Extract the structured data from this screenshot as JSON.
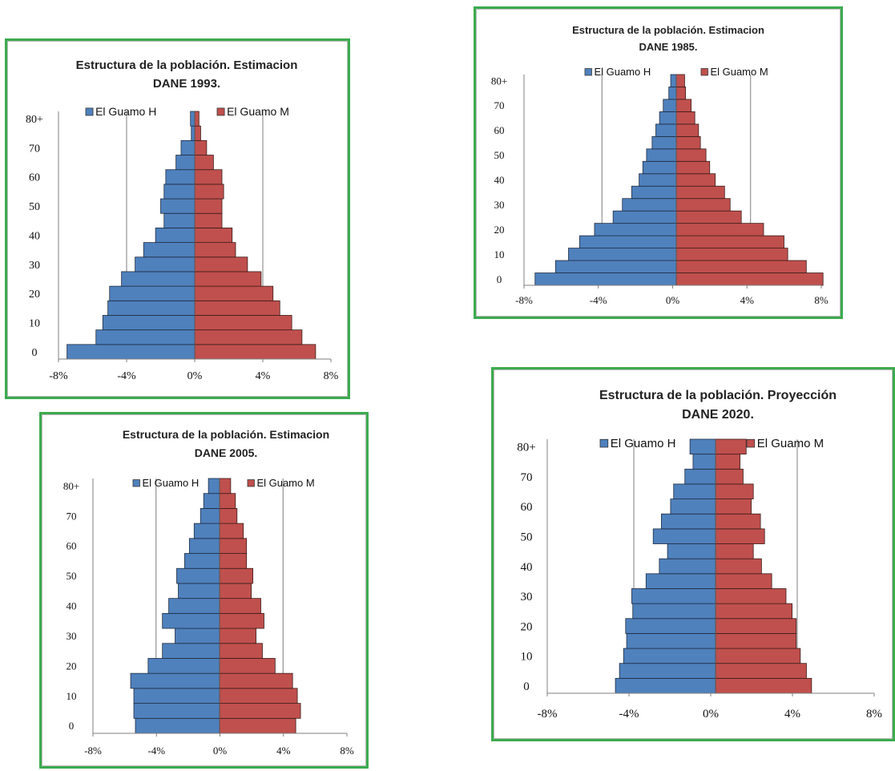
{
  "colors": {
    "male": "#4f81bd",
    "female": "#c0504d",
    "male_edge": "#1f2c3f",
    "female_edge": "#3a1c1b",
    "frame": "#3cab4f",
    "grid": "#7f7f7f"
  },
  "chart_data": [
    {
      "id": "c1993",
      "type": "bar",
      "orientation": "horizontal-population-pyramid",
      "title_lines": [
        "Estructura de la población. Estimacion",
        "DANE 1993."
      ],
      "legend": [
        "El Guamo H",
        "El Guamo M"
      ],
      "xticks": [
        "-8%",
        "-4%",
        "0%",
        "4%",
        "8%"
      ],
      "yticks": [
        "0",
        "10",
        "20",
        "30",
        "40",
        "50",
        "60",
        "70",
        "80+"
      ],
      "xlim": [
        -8,
        8
      ],
      "grid": "vertical at -4 and 4",
      "age_groups": 17,
      "series": [
        {
          "name": "El Guamo H",
          "values": [
            -7.5,
            -5.8,
            -5.4,
            -5.1,
            -5.0,
            -4.3,
            -3.5,
            -3.0,
            -2.3,
            -1.8,
            -2.0,
            -1.8,
            -1.7,
            -1.1,
            -0.8,
            -0.2,
            -0.25
          ]
        },
        {
          "name": "El Guamo M",
          "values": [
            7.1,
            6.3,
            5.7,
            5.0,
            4.6,
            3.9,
            3.1,
            2.4,
            2.2,
            1.6,
            1.6,
            1.7,
            1.6,
            1.1,
            0.7,
            0.35,
            0.25
          ]
        }
      ]
    },
    {
      "id": "c1985",
      "type": "bar",
      "orientation": "horizontal-population-pyramid",
      "title_lines": [
        "Estructura de la población. Estimacion",
        "DANE 1985."
      ],
      "legend": [
        "El Guamo H",
        "El Guamo M"
      ],
      "xticks": [
        "-8%",
        "-4%",
        "0%",
        "4%",
        "8%"
      ],
      "yticks": [
        "0",
        "10",
        "20",
        "30",
        "40",
        "50",
        "60",
        "70",
        "80+"
      ],
      "xlim": [
        -8,
        8
      ],
      "grid": "vertical at -4 and 4",
      "age_groups": 17,
      "series": [
        {
          "name": "El Guamo H",
          "values": [
            -7.6,
            -6.5,
            -5.8,
            -5.2,
            -4.4,
            -3.4,
            -2.9,
            -2.4,
            -2.0,
            -1.8,
            -1.6,
            -1.3,
            -1.1,
            -0.9,
            -0.7,
            -0.4,
            -0.3
          ]
        },
        {
          "name": "El Guamo M",
          "values": [
            7.9,
            7.0,
            6.0,
            5.8,
            4.7,
            3.5,
            2.9,
            2.6,
            2.1,
            1.8,
            1.6,
            1.3,
            1.2,
            1.0,
            0.8,
            0.5,
            0.45
          ]
        }
      ]
    },
    {
      "id": "c2005",
      "type": "bar",
      "orientation": "horizontal-population-pyramid",
      "title_lines": [
        "Estructura de la población. Estimacion",
        "DANE 2005."
      ],
      "legend": [
        "El Guamo H",
        "El Guamo M"
      ],
      "xticks": [
        "-8%",
        "-4%",
        "0%",
        "4%",
        "8%"
      ],
      "yticks": [
        "0",
        "10",
        "20",
        "30",
        "40",
        "50",
        "60",
        "70",
        "80+"
      ],
      "xlim": [
        -8,
        8
      ],
      "grid": "vertical at -4 and 4",
      "age_groups": 17,
      "series": [
        {
          "name": "El Guamo H",
          "values": [
            -5.3,
            -5.4,
            -5.4,
            -5.6,
            -4.5,
            -3.6,
            -2.8,
            -3.6,
            -3.2,
            -2.6,
            -2.7,
            -2.2,
            -1.9,
            -1.6,
            -1.2,
            -1.0,
            -0.7
          ]
        },
        {
          "name": "El Guamo M",
          "values": [
            4.8,
            5.1,
            4.9,
            4.6,
            3.5,
            2.7,
            2.3,
            2.8,
            2.6,
            2.0,
            2.1,
            1.7,
            1.7,
            1.5,
            1.1,
            1.0,
            0.7
          ]
        }
      ]
    },
    {
      "id": "c2020",
      "type": "bar",
      "orientation": "horizontal-population-pyramid",
      "title_lines": [
        "Estructura de la población. Proyección",
        "DANE 2020."
      ],
      "legend": [
        "El Guamo H",
        "El Guamo M"
      ],
      "xticks": [
        "-8%",
        "-4%",
        "0%",
        "4%",
        "8%"
      ],
      "yticks": [
        "0",
        "10",
        "20",
        "30",
        "40",
        "50",
        "60",
        "70",
        "80+"
      ],
      "xlim": [
        -8,
        8
      ],
      "grid": "vertical at -4 and 4",
      "age_groups": 17,
      "series": [
        {
          "name": "El Guamo H",
          "values": [
            -4.9,
            -4.7,
            -4.5,
            -4.35,
            -4.4,
            -4.05,
            -4.1,
            -3.4,
            -2.75,
            -2.35,
            -3.05,
            -2.65,
            -2.2,
            -2.05,
            -1.5,
            -1.1,
            -1.25
          ]
        },
        {
          "name": "El Guamo M",
          "values": [
            4.7,
            4.45,
            4.15,
            3.95,
            3.95,
            3.75,
            3.45,
            2.75,
            2.25,
            1.85,
            2.4,
            2.2,
            1.75,
            1.85,
            1.35,
            1.2,
            1.5
          ]
        }
      ]
    }
  ]
}
